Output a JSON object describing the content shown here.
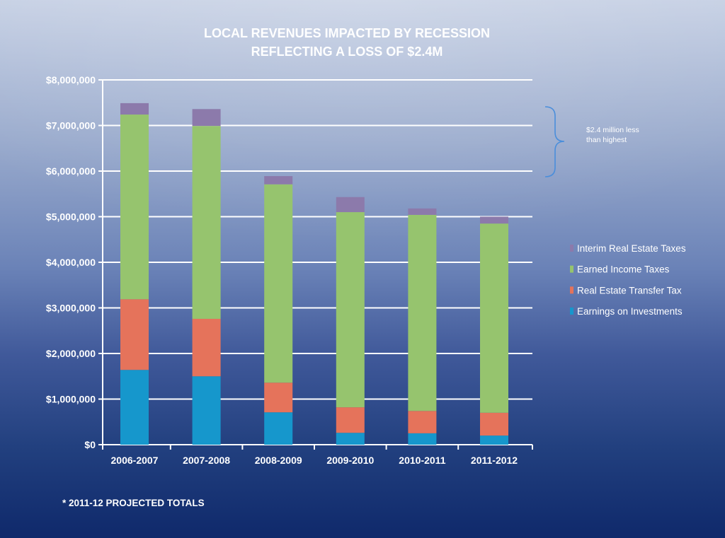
{
  "chart_data": {
    "type": "bar",
    "stacked": true,
    "title": "LOCAL REVENUES IMPACTED BY RECESSION",
    "subtitle": "REFLECTING A LOSS OF $2.4M",
    "xlabel": "",
    "ylabel": "",
    "categories": [
      "2006-2007",
      "2007-2008",
      "2008-2009",
      "2009-2010",
      "2010-2011",
      "2011-2012"
    ],
    "series": [
      {
        "name": "Earnings on Investments",
        "color": "#1697cc",
        "values": [
          1640000,
          1500000,
          710000,
          260000,
          250000,
          200000
        ]
      },
      {
        "name": "Real Estate Transfer Tax",
        "color": "#e5735b",
        "values": [
          1550000,
          1260000,
          650000,
          560000,
          490000,
          500000
        ]
      },
      {
        "name": "Earned Income Taxes",
        "color": "#96c46e",
        "values": [
          4050000,
          4230000,
          4350000,
          4280000,
          4300000,
          4150000
        ]
      },
      {
        "name": "Interim Real Estate Taxes",
        "color": "#8c7aab",
        "values": [
          250000,
          370000,
          180000,
          330000,
          140000,
          150000
        ]
      }
    ],
    "ylim": [
      0,
      8000000
    ],
    "y_ticks": [
      0,
      1000000,
      2000000,
      3000000,
      4000000,
      5000000,
      6000000,
      7000000,
      8000000
    ],
    "y_tick_labels": [
      "$0",
      "$1,000,000",
      "$2,000,000",
      "$3,000,000",
      "$4,000,000",
      "$5,000,000",
      "$6,000,000",
      "$7,000,000",
      "$8,000,000"
    ],
    "grid": true,
    "legend_position": "right",
    "annotation": {
      "lines": [
        "$2.4 million less",
        "than highest"
      ],
      "icon": "curly-brace"
    }
  },
  "footnote": "* 2011-12 PROJECTED TOTALS",
  "colors": {
    "text": "#ffffff",
    "grid": "#ffffff",
    "brace": "#4a8edb",
    "background_top": "#c6d0e4",
    "background_bottom": "#0f296b"
  }
}
